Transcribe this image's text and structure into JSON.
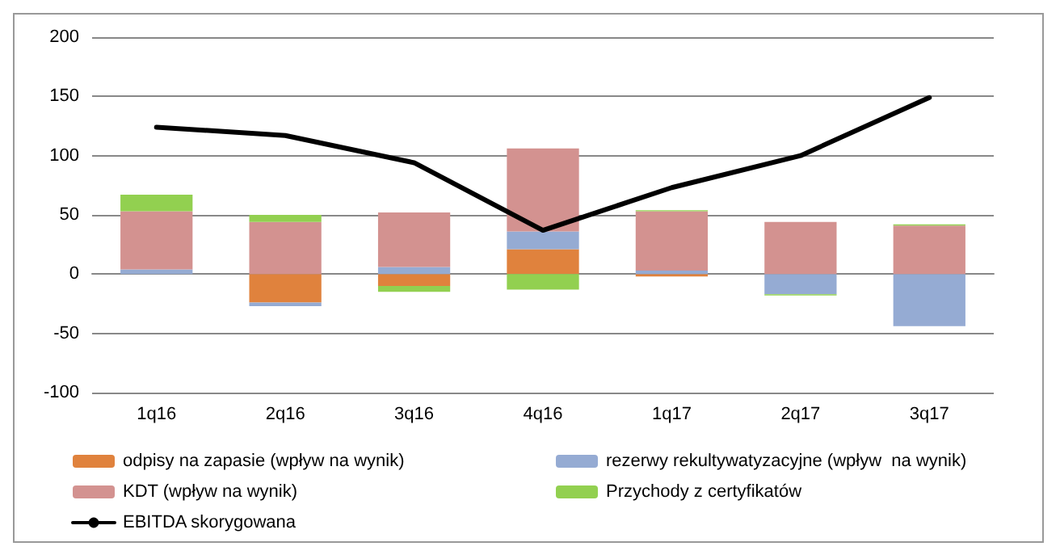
{
  "chart_data": {
    "type": "bar",
    "stacked": true,
    "categories": [
      "1q16",
      "2q16",
      "3q16",
      "4q16",
      "1q17",
      "2q17",
      "3q17"
    ],
    "series": [
      {
        "name": "odpisy na zapasie (wpływ na wynik)",
        "color": "#e0823d",
        "values": [
          0,
          -24,
          -10,
          21,
          -2,
          0,
          0
        ]
      },
      {
        "name": "rezerwy rekultywatyzacyjne (wpływ  na wynik)",
        "color": "#95abd3",
        "values": [
          4,
          -3,
          6,
          15,
          3,
          -17,
          -44
        ]
      },
      {
        "name": "KDT (wpływ na wynik)",
        "color": "#d39290",
        "values": [
          49,
          44,
          46,
          70,
          50,
          44,
          41
        ]
      },
      {
        "name": "Przychody z certyfikatów",
        "color": "#92d050",
        "values": [
          14,
          6,
          -5,
          -13,
          1,
          -1,
          1
        ]
      },
      {
        "name": "EBITDA skorygowana",
        "type": "line",
        "color": "#000000",
        "marker": "none",
        "values": [
          124,
          117,
          94,
          37,
          73,
          100,
          149
        ]
      }
    ],
    "ylim": [
      -100,
      200
    ],
    "yticks": [
      -100,
      -50,
      0,
      50,
      100,
      150,
      200
    ],
    "grid": "y",
    "legend": "bottom"
  }
}
